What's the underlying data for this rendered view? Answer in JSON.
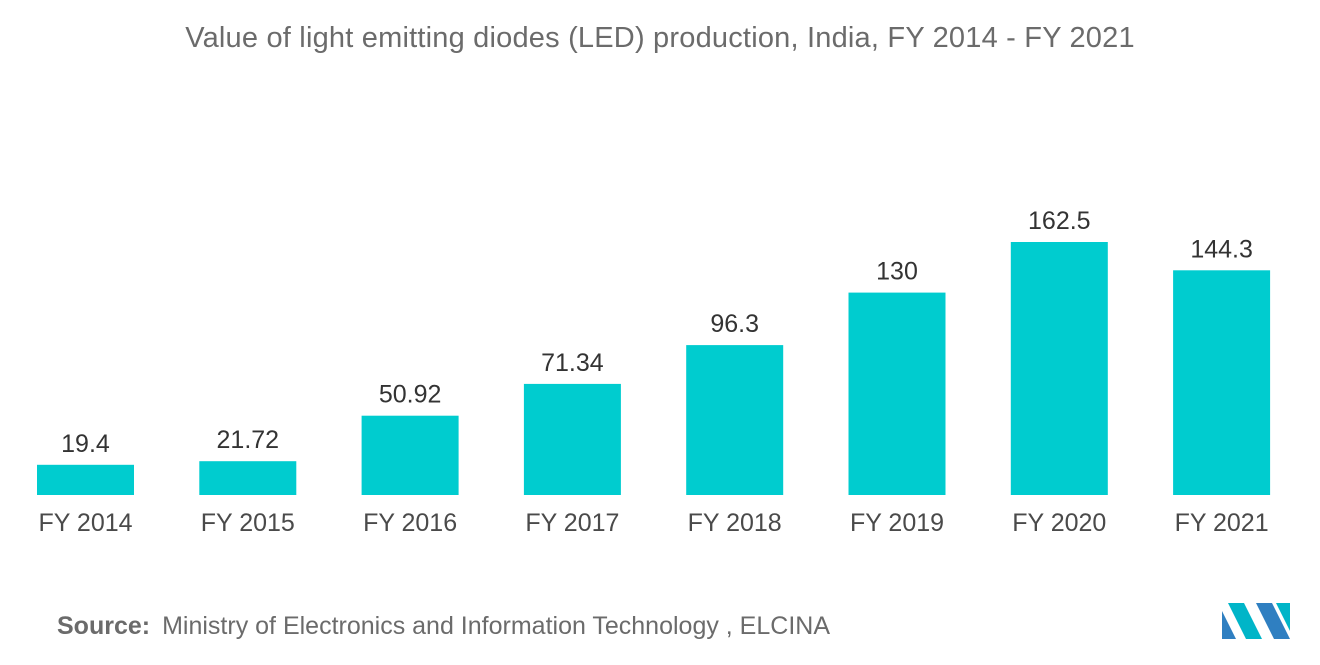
{
  "chart_data": {
    "type": "bar",
    "title": "Value of light emitting diodes (LED) production, India, FY 2014 - FY 2021",
    "categories": [
      "FY 2014",
      "FY 2015",
      "FY 2016",
      "FY 2017",
      "FY 2018",
      "FY 2019",
      "FY 2020",
      "FY 2021"
    ],
    "values": [
      19.4,
      21.72,
      50.92,
      71.34,
      96.3,
      130,
      162.5,
      144.3
    ],
    "value_labels": [
      "19.4",
      "21.72",
      "50.92",
      "71.34",
      "96.3",
      "130",
      "162.5",
      "144.3"
    ],
    "xlabel": "",
    "ylabel": "",
    "ylim": [
      0,
      162.5
    ],
    "grid": false,
    "legend": "none",
    "bar_color": "#00CCCF"
  },
  "source": {
    "label": "Source:",
    "text": "Ministry of Electronics and Information Technology , ELCINA"
  },
  "logo": {
    "icon": "brand-logo-icon",
    "colors": [
      "#2F7FC1",
      "#00B5C8"
    ]
  }
}
